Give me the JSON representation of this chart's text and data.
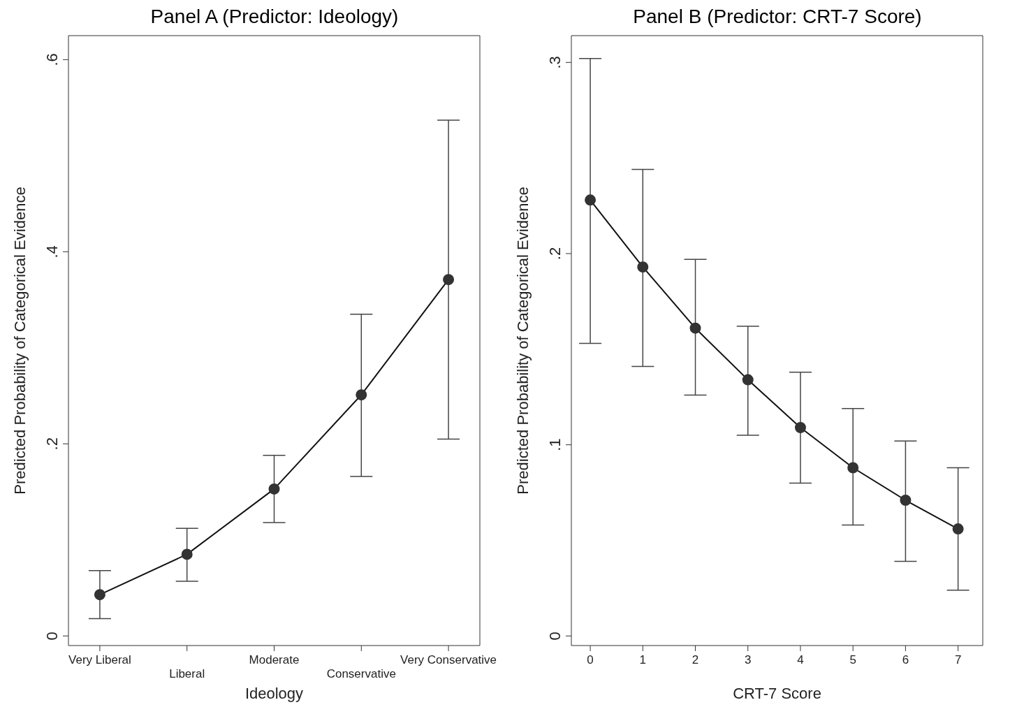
{
  "chart_data": [
    {
      "type": "line",
      "title": "Panel A (Predictor: Ideology)",
      "xlabel": "Ideology",
      "ylabel": "Predicted Probability of Categorical Evidence",
      "categories": [
        "Very Liberal",
        "Liberal",
        "Moderate",
        "Conservative",
        "Very Conservative"
      ],
      "series": [
        {
          "color": "#333333",
          "values": [
            0.043,
            0.085,
            0.153,
            0.251,
            0.371
          ],
          "errors": [
            [
              0.018,
              0.068
            ],
            [
              0.057,
              0.112
            ],
            [
              0.118,
              0.188
            ],
            [
              0.166,
              0.335
            ],
            [
              0.205,
              0.537
            ]
          ]
        }
      ],
      "ylim": [
        -0.01,
        0.625
      ],
      "yticks": [
        {
          "value": 0,
          "label": "0"
        },
        {
          "value": 0.2,
          "label": ".2"
        },
        {
          "value": 0.4,
          "label": ".4"
        },
        {
          "value": 0.6,
          "label": ".6"
        }
      ],
      "marker": "circle",
      "line_style": "solid"
    },
    {
      "type": "line",
      "title": "Panel B (Predictor: CRT-7 Score)",
      "xlabel": "CRT-7 Score",
      "ylabel": "Predicted Probability of Categorical Evidence",
      "x": [
        0,
        1,
        2,
        3,
        4,
        5,
        6,
        7
      ],
      "series": [
        {
          "color": "#333333",
          "values": [
            0.228,
            0.193,
            0.161,
            0.134,
            0.109,
            0.088,
            0.071,
            0.056
          ],
          "errors": [
            [
              0.153,
              0.302
            ],
            [
              0.141,
              0.244
            ],
            [
              0.126,
              0.197
            ],
            [
              0.105,
              0.162
            ],
            [
              0.08,
              0.138
            ],
            [
              0.058,
              0.119
            ],
            [
              0.039,
              0.102
            ],
            [
              0.024,
              0.088
            ]
          ]
        }
      ],
      "xlim": [
        -0.36,
        7.47
      ],
      "xticks": [
        0,
        1,
        2,
        3,
        4,
        5,
        6,
        7
      ],
      "ylim": [
        -0.005,
        0.314
      ],
      "yticks": [
        {
          "value": 0,
          "label": "0"
        },
        {
          "value": 0.1,
          "label": ".1"
        },
        {
          "value": 0.2,
          "label": ".2"
        },
        {
          "value": 0.3,
          "label": ".3"
        }
      ],
      "marker": "circle",
      "line_style": "solid"
    }
  ]
}
